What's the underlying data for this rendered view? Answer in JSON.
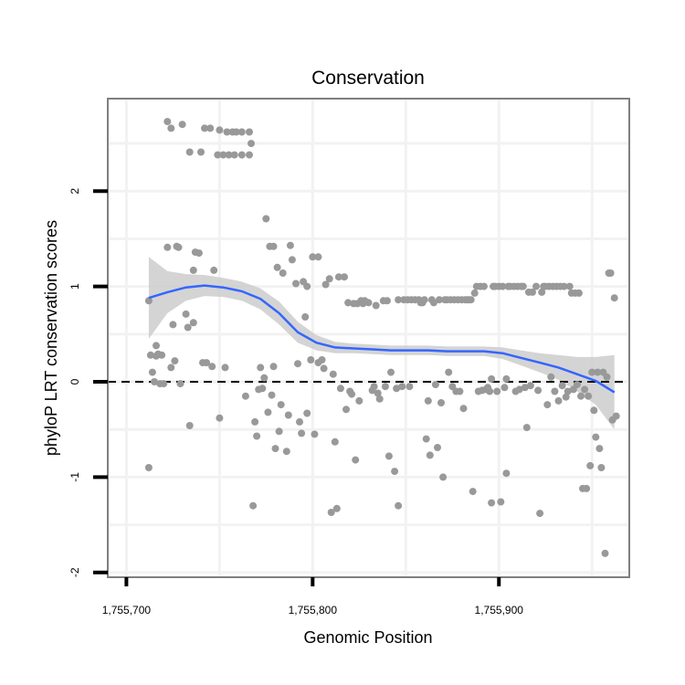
{
  "chart_data": {
    "type": "scatter",
    "title": "Conservation",
    "xlabel": "Genomic Position",
    "ylabel": "phyloP LRT conservation scores",
    "xlim": [
      1755690,
      1755970
    ],
    "ylim": [
      -2.05,
      2.97
    ],
    "x_ticks": [
      1755700,
      1755800,
      1755900
    ],
    "x_tick_labels": [
      "1,755,700",
      "1,755,800",
      "1,755,900"
    ],
    "y_ticks": [
      -2,
      -1,
      0,
      1,
      2
    ],
    "y_tick_labels": [
      "-2",
      "-1",
      "0",
      "1",
      "2"
    ],
    "grid": true,
    "reference_line": {
      "y": 0,
      "style": "dashed"
    },
    "colors": {
      "points": "#999999",
      "smooth": "#3366ff",
      "band": "#cccccc",
      "frame": "#7f7f7f",
      "grid": "#f2f2f2"
    },
    "points": [
      [
        1755712,
        0.85
      ],
      [
        1755712,
        -0.9
      ],
      [
        1755713,
        0.28
      ],
      [
        1755714,
        0.1
      ],
      [
        1755715,
        0.0
      ],
      [
        1755716,
        0.38
      ],
      [
        1755716,
        0.27
      ],
      [
        1755717,
        0.29
      ],
      [
        1755718,
        -0.02
      ],
      [
        1755719,
        0.28
      ],
      [
        1755720,
        -0.02
      ],
      [
        1755722,
        2.73
      ],
      [
        1755722,
        1.41
      ],
      [
        1755724,
        2.66
      ],
      [
        1755724,
        0.15
      ],
      [
        1755725,
        0.6
      ],
      [
        1755726,
        0.22
      ],
      [
        1755727,
        1.42
      ],
      [
        1755728,
        1.41
      ],
      [
        1755729,
        -0.02
      ],
      [
        1755730,
        2.7
      ],
      [
        1755732,
        0.71
      ],
      [
        1755733,
        0.57
      ],
      [
        1755734,
        2.41
      ],
      [
        1755734,
        -0.46
      ],
      [
        1755736,
        1.17
      ],
      [
        1755736,
        0.62
      ],
      [
        1755737,
        1.36
      ],
      [
        1755739,
        1.35
      ],
      [
        1755740,
        2.41
      ],
      [
        1755741,
        0.2
      ],
      [
        1755742,
        2.66
      ],
      [
        1755743,
        0.2
      ],
      [
        1755745,
        2.66
      ],
      [
        1755746,
        0.16
      ],
      [
        1755747,
        1.17
      ],
      [
        1755749,
        2.38
      ],
      [
        1755750,
        2.64
      ],
      [
        1755750,
        -0.38
      ],
      [
        1755752,
        2.38
      ],
      [
        1755753,
        0.15
      ],
      [
        1755754,
        2.62
      ],
      [
        1755755,
        2.38
      ],
      [
        1755757,
        2.62
      ],
      [
        1755758,
        2.38
      ],
      [
        1755759,
        2.62
      ],
      [
        1755762,
        2.38
      ],
      [
        1755762,
        2.62
      ],
      [
        1755764,
        -0.15
      ],
      [
        1755766,
        2.38
      ],
      [
        1755766,
        2.62
      ],
      [
        1755767,
        2.5
      ],
      [
        1755768,
        -1.3
      ],
      [
        1755769,
        -0.42
      ],
      [
        1755770,
        -0.57
      ],
      [
        1755771,
        -0.08
      ],
      [
        1755772,
        0.15
      ],
      [
        1755773,
        -0.07
      ],
      [
        1755774,
        0.04
      ],
      [
        1755775,
        1.71
      ],
      [
        1755776,
        -0.32
      ],
      [
        1755777,
        1.42
      ],
      [
        1755778,
        -0.14
      ],
      [
        1755779,
        0.16
      ],
      [
        1755779,
        1.42
      ],
      [
        1755780,
        -0.7
      ],
      [
        1755781,
        1.2
      ],
      [
        1755782,
        -0.52
      ],
      [
        1755783,
        -0.24
      ],
      [
        1755784,
        1.14
      ],
      [
        1755786,
        -0.73
      ],
      [
        1755787,
        -0.35
      ],
      [
        1755788,
        1.43
      ],
      [
        1755789,
        1.28
      ],
      [
        1755791,
        1.03
      ],
      [
        1755792,
        0.19
      ],
      [
        1755793,
        -0.42
      ],
      [
        1755794,
        -0.54
      ],
      [
        1755795,
        1.05
      ],
      [
        1755796,
        0.68
      ],
      [
        1755797,
        -0.33
      ],
      [
        1755797,
        1.0
      ],
      [
        1755799,
        0.23
      ],
      [
        1755800,
        1.31
      ],
      [
        1755801,
        -0.55
      ],
      [
        1755803,
        0.2
      ],
      [
        1755803,
        1.31
      ],
      [
        1755805,
        0.23
      ],
      [
        1755806,
        0.14
      ],
      [
        1755807,
        1.02
      ],
      [
        1755809,
        1.08
      ],
      [
        1755810,
        -1.37
      ],
      [
        1755811,
        0.08
      ],
      [
        1755812,
        -0.63
      ],
      [
        1755813,
        -1.33
      ],
      [
        1755814,
        1.1
      ],
      [
        1755815,
        -0.07
      ],
      [
        1755817,
        1.1
      ],
      [
        1755818,
        -0.29
      ],
      [
        1755819,
        0.83
      ],
      [
        1755820,
        -0.1
      ],
      [
        1755821,
        -0.13
      ],
      [
        1755822,
        0.82
      ],
      [
        1755823,
        -0.82
      ],
      [
        1755824,
        0.82
      ],
      [
        1755825,
        -0.2
      ],
      [
        1755826,
        0.85
      ],
      [
        1755827,
        0.82
      ],
      [
        1755828,
        0.85
      ],
      [
        1755830,
        0.83
      ],
      [
        1755832,
        -0.09
      ],
      [
        1755833,
        -0.05
      ],
      [
        1755834,
        0.8
      ],
      [
        1755835,
        -0.12
      ],
      [
        1755836,
        -0.18
      ],
      [
        1755838,
        0.85
      ],
      [
        1755839,
        -0.05
      ],
      [
        1755840,
        0.85
      ],
      [
        1755841,
        -0.78
      ],
      [
        1755842,
        0.1
      ],
      [
        1755844,
        -0.94
      ],
      [
        1755845,
        -0.07
      ],
      [
        1755846,
        0.86
      ],
      [
        1755846,
        -1.3
      ],
      [
        1755848,
        -0.05
      ],
      [
        1755849,
        0.86
      ],
      [
        1755851,
        0.86
      ],
      [
        1755852,
        -0.05
      ],
      [
        1755853,
        0.86
      ],
      [
        1755855,
        0.86
      ],
      [
        1755857,
        0.86
      ],
      [
        1755858,
        0.83
      ],
      [
        1755859,
        0.83
      ],
      [
        1755860,
        0.86
      ],
      [
        1755861,
        -0.6
      ],
      [
        1755862,
        -0.2
      ],
      [
        1755863,
        -0.77
      ],
      [
        1755864,
        0.86
      ],
      [
        1755865,
        0.83
      ],
      [
        1755866,
        -0.03
      ],
      [
        1755867,
        -0.69
      ],
      [
        1755868,
        0.86
      ],
      [
        1755869,
        -0.22
      ],
      [
        1755870,
        -1.0
      ],
      [
        1755871,
        0.86
      ],
      [
        1755872,
        0.86
      ],
      [
        1755873,
        0.1
      ],
      [
        1755874,
        0.86
      ],
      [
        1755875,
        -0.05
      ],
      [
        1755876,
        0.86
      ],
      [
        1755877,
        -0.1
      ],
      [
        1755878,
        0.86
      ],
      [
        1755879,
        -0.1
      ],
      [
        1755880,
        0.86
      ],
      [
        1755881,
        -0.28
      ],
      [
        1755882,
        0.86
      ],
      [
        1755883,
        0.86
      ],
      [
        1755884,
        0.86
      ],
      [
        1755885,
        0.86
      ],
      [
        1755886,
        -1.15
      ],
      [
        1755887,
        0.93
      ],
      [
        1755888,
        1.0
      ],
      [
        1755889,
        -0.1
      ],
      [
        1755890,
        1.0
      ],
      [
        1755891,
        -0.09
      ],
      [
        1755892,
        1.0
      ],
      [
        1755893,
        -0.08
      ],
      [
        1755894,
        -0.06
      ],
      [
        1755895,
        -0.1
      ],
      [
        1755896,
        0.03
      ],
      [
        1755896,
        -1.27
      ],
      [
        1755897,
        1.0
      ],
      [
        1755898,
        1.0
      ],
      [
        1755899,
        -0.1
      ],
      [
        1755900,
        1.0
      ],
      [
        1755901,
        -1.26
      ],
      [
        1755902,
        1.0
      ],
      [
        1755903,
        -0.06
      ],
      [
        1755904,
        0.03
      ],
      [
        1755904,
        -0.96
      ],
      [
        1755905,
        1.0
      ],
      [
        1755906,
        1.0
      ],
      [
        1755908,
        1.0
      ],
      [
        1755909,
        -0.1
      ],
      [
        1755910,
        1.0
      ],
      [
        1755911,
        -0.08
      ],
      [
        1755912,
        1.0
      ],
      [
        1755913,
        1.0
      ],
      [
        1755914,
        -0.06
      ],
      [
        1755915,
        -0.48
      ],
      [
        1755916,
        0.94
      ],
      [
        1755917,
        -0.04
      ],
      [
        1755918,
        0.94
      ],
      [
        1755920,
        1.0
      ],
      [
        1755921,
        -0.09
      ],
      [
        1755922,
        -1.38
      ],
      [
        1755923,
        0.94
      ],
      [
        1755924,
        1.0
      ],
      [
        1755925,
        1.0
      ],
      [
        1755926,
        -0.24
      ],
      [
        1755927,
        1.0
      ],
      [
        1755928,
        0.05
      ],
      [
        1755929,
        1.0
      ],
      [
        1755930,
        -0.1
      ],
      [
        1755931,
        1.0
      ],
      [
        1755932,
        -0.2
      ],
      [
        1755933,
        1.0
      ],
      [
        1755934,
        -0.04
      ],
      [
        1755935,
        1.0
      ],
      [
        1755936,
        -0.16
      ],
      [
        1755937,
        -0.1
      ],
      [
        1755938,
        1.0
      ],
      [
        1755939,
        0.93
      ],
      [
        1755940,
        -0.08
      ],
      [
        1755941,
        0.93
      ],
      [
        1755942,
        -0.03
      ],
      [
        1755943,
        0.93
      ],
      [
        1755944,
        -0.15
      ],
      [
        1755945,
        -1.12
      ],
      [
        1755946,
        -0.08
      ],
      [
        1755947,
        -1.12
      ],
      [
        1755948,
        -0.15
      ],
      [
        1755949,
        -0.88
      ],
      [
        1755950,
        0.1
      ],
      [
        1755951,
        -0.3
      ],
      [
        1755952,
        -0.58
      ],
      [
        1755953,
        0.1
      ],
      [
        1755954,
        -0.7
      ],
      [
        1755955,
        -0.9
      ],
      [
        1755956,
        0.1
      ],
      [
        1755957,
        -1.8
      ],
      [
        1755958,
        0.05
      ],
      [
        1755959,
        1.14
      ],
      [
        1755960,
        1.14
      ],
      [
        1755961,
        -0.4
      ],
      [
        1755962,
        0.88
      ],
      [
        1755963,
        -0.36
      ]
    ],
    "smooth": {
      "x": [
        1755712,
        1755722,
        1755732,
        1755742,
        1755752,
        1755762,
        1755772,
        1755782,
        1755792,
        1755802,
        1755812,
        1755822,
        1755832,
        1755842,
        1755852,
        1755862,
        1755872,
        1755882,
        1755892,
        1755902,
        1755912,
        1755922,
        1755932,
        1755942,
        1755952,
        1755962
      ],
      "y": [
        0.88,
        0.94,
        0.99,
        1.01,
        0.99,
        0.95,
        0.87,
        0.72,
        0.52,
        0.41,
        0.36,
        0.35,
        0.34,
        0.33,
        0.33,
        0.33,
        0.32,
        0.32,
        0.32,
        0.3,
        0.25,
        0.2,
        0.15,
        0.08,
        0.01,
        -0.11
      ],
      "lower": [
        0.45,
        0.72,
        0.85,
        0.9,
        0.89,
        0.85,
        0.76,
        0.6,
        0.41,
        0.33,
        0.3,
        0.3,
        0.29,
        0.28,
        0.28,
        0.28,
        0.27,
        0.27,
        0.27,
        0.24,
        0.17,
        0.1,
        0.02,
        -0.1,
        -0.24,
        -0.5
      ],
      "upper": [
        1.31,
        1.16,
        1.13,
        1.12,
        1.09,
        1.05,
        0.98,
        0.84,
        0.63,
        0.49,
        0.42,
        0.4,
        0.39,
        0.38,
        0.38,
        0.38,
        0.37,
        0.37,
        0.37,
        0.36,
        0.33,
        0.3,
        0.28,
        0.26,
        0.26,
        0.28
      ]
    }
  }
}
